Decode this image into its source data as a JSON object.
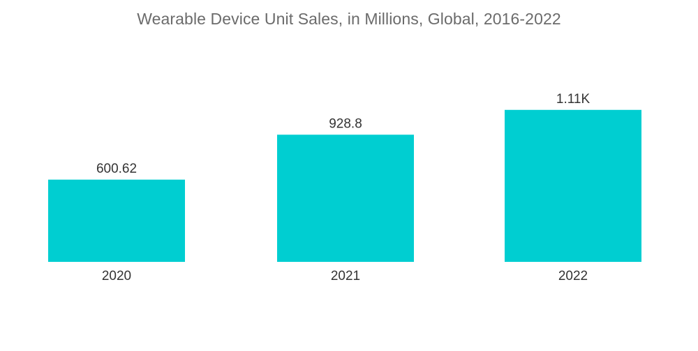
{
  "chart_data": {
    "type": "bar",
    "title": "Wearable Device Unit Sales, in Millions, Global, 2016-2022",
    "categories": [
      "2020",
      "2021",
      "2022"
    ],
    "values": [
      600.62,
      928.8,
      1110
    ],
    "data_labels": [
      "600.62",
      "928.8",
      "1.11K"
    ],
    "xlabel": "",
    "ylabel": "",
    "ylim": [
      0,
      1200
    ],
    "grid": false,
    "legend": "none",
    "bar_color": "#00ced1"
  }
}
